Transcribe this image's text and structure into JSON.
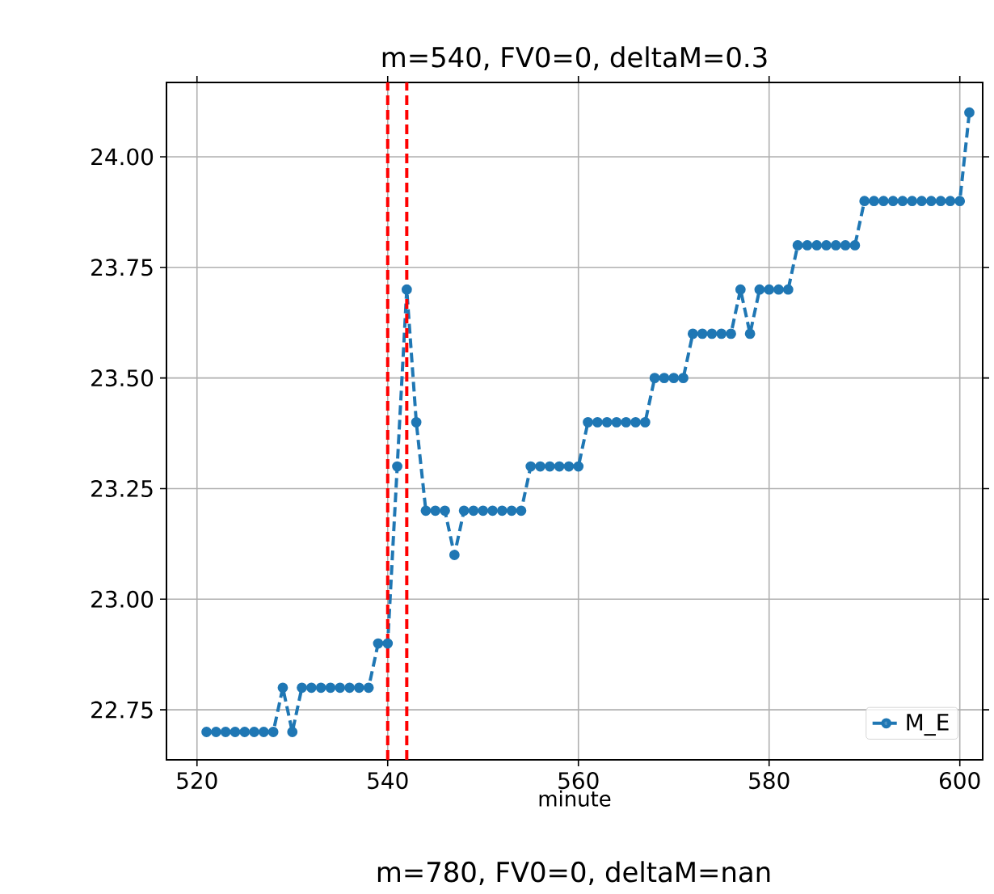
{
  "chart_data": {
    "type": "line",
    "title": "m=540, FV0=0, deltaM=0.3",
    "xlabel": "minute",
    "annotations": [
      "m=780, FV0=0, deltaM=nan"
    ],
    "x": [
      521,
      522,
      523,
      524,
      525,
      526,
      527,
      528,
      529,
      530,
      531,
      532,
      533,
      534,
      535,
      536,
      537,
      538,
      539,
      540,
      541,
      542,
      543,
      544,
      545,
      546,
      547,
      548,
      549,
      550,
      551,
      552,
      553,
      554,
      555,
      556,
      557,
      558,
      559,
      560,
      561,
      562,
      563,
      564,
      565,
      566,
      567,
      568,
      569,
      570,
      571,
      572,
      573,
      574,
      575,
      576,
      577,
      578,
      579,
      580,
      581,
      582,
      583,
      584,
      585,
      586,
      587,
      588,
      589,
      590,
      591,
      592,
      593,
      594,
      595,
      596,
      597,
      598,
      599,
      600,
      601
    ],
    "series": [
      {
        "name": "M_E",
        "color": "#1f77b4",
        "values": [
          22.7,
          22.7,
          22.7,
          22.7,
          22.7,
          22.7,
          22.7,
          22.7,
          22.8,
          22.7,
          22.8,
          22.8,
          22.8,
          22.8,
          22.8,
          22.8,
          22.8,
          22.8,
          22.9,
          22.9,
          23.3,
          23.7,
          23.4,
          23.2,
          23.2,
          23.2,
          23.1,
          23.2,
          23.2,
          23.2,
          23.2,
          23.2,
          23.2,
          23.2,
          23.3,
          23.3,
          23.3,
          23.3,
          23.3,
          23.3,
          23.4,
          23.4,
          23.4,
          23.4,
          23.4,
          23.4,
          23.4,
          23.5,
          23.5,
          23.5,
          23.5,
          23.6,
          23.6,
          23.6,
          23.6,
          23.6,
          23.7,
          23.6,
          23.7,
          23.7,
          23.7,
          23.7,
          23.8,
          23.8,
          23.8,
          23.8,
          23.8,
          23.8,
          23.8,
          23.9,
          23.9,
          23.9,
          23.9,
          23.9,
          23.9,
          23.9,
          23.9,
          23.9,
          23.9,
          23.9,
          24.1
        ]
      }
    ],
    "xlim": [
      516.8,
      602.4
    ],
    "ylim": [
      22.637,
      24.168
    ],
    "xticks": [
      520,
      540,
      560,
      580,
      600
    ],
    "yticks": [
      {
        "value": 22.75,
        "label": "22.75"
      },
      {
        "value": 23.0,
        "label": "23.00"
      },
      {
        "value": 23.25,
        "label": "23.25"
      },
      {
        "value": 23.5,
        "label": "23.50"
      },
      {
        "value": 23.75,
        "label": "23.75"
      },
      {
        "value": 24.0,
        "label": "24.00"
      }
    ],
    "ref_lines": [
      {
        "axis": "x",
        "value": 540,
        "color": "#ff0000",
        "line_style": "dashed"
      },
      {
        "axis": "x",
        "value": 542,
        "color": "#ff0000",
        "line_style": "dashed"
      }
    ],
    "grid": true,
    "legend": "bottom right",
    "marker": "circle",
    "line_style": "dashed"
  }
}
